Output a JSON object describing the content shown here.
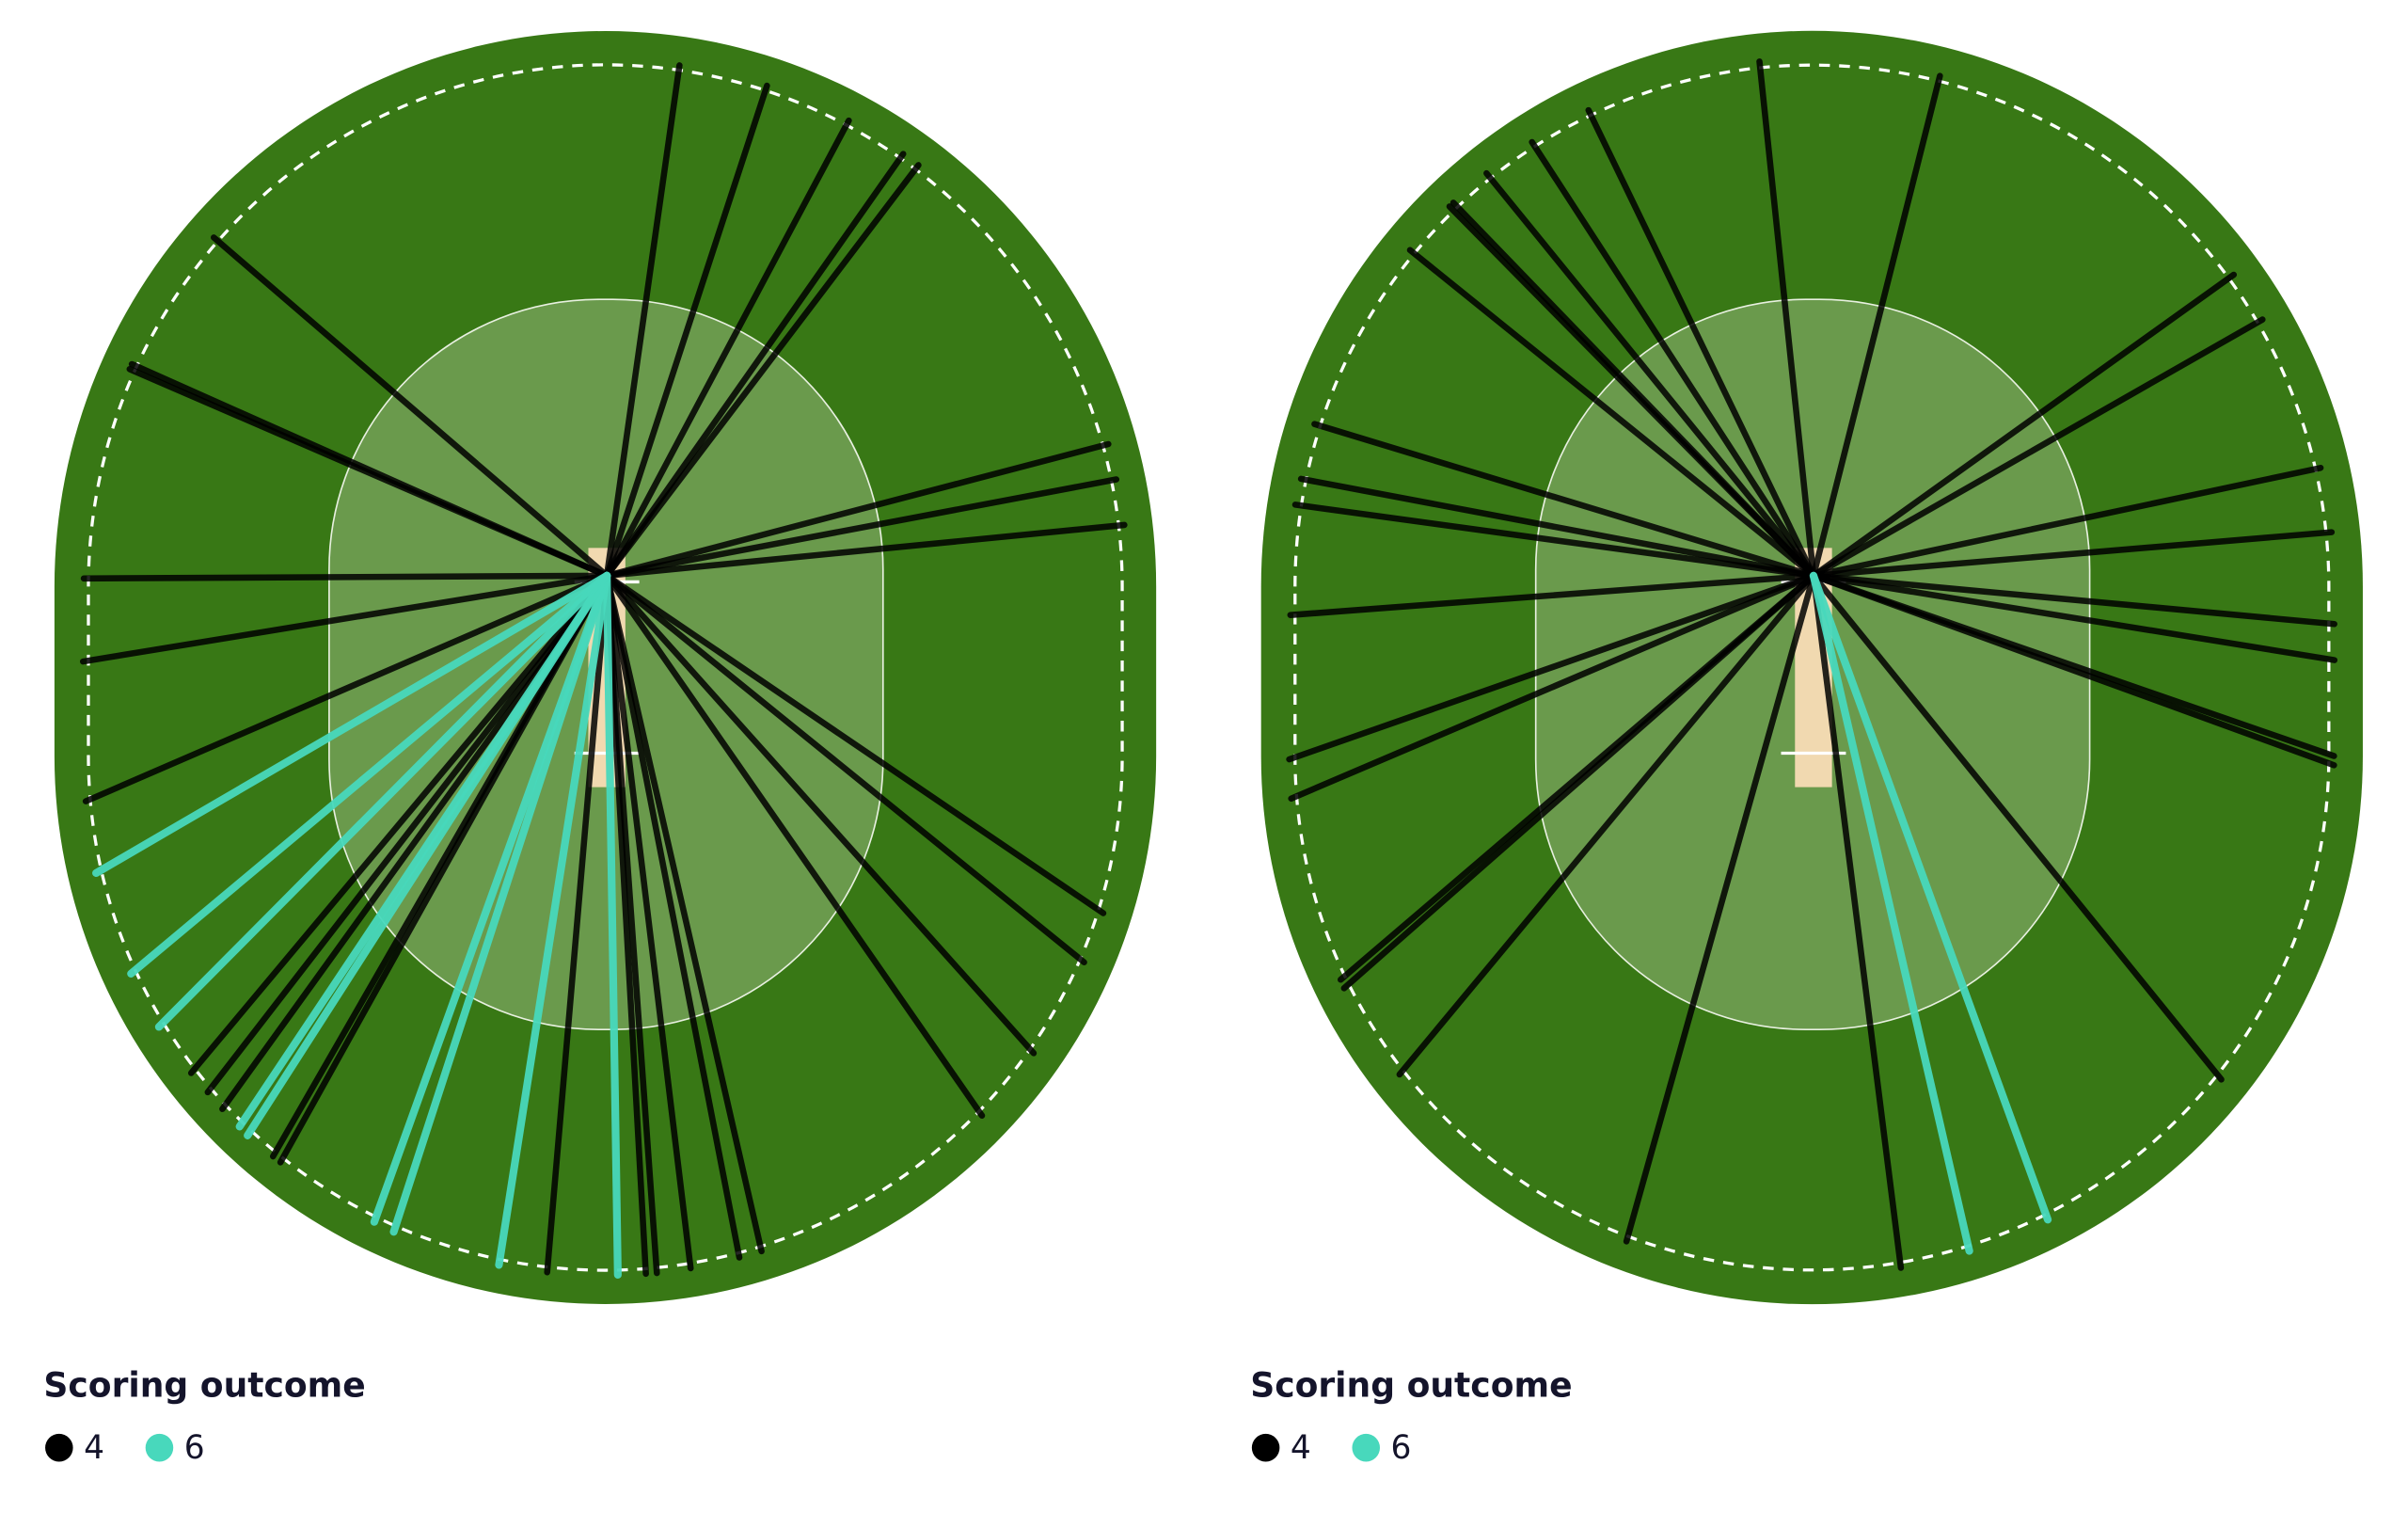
{
  "chart_data": [
    {
      "type": "wagon-wheel",
      "legend_title": "Scoring outcome",
      "series": [
        {
          "name": "4",
          "color": "#000000",
          "values": [
            8.1,
            18.1,
            28.0,
            35.1,
            37.2,
            75.3,
            79.3,
            84.4,
            124.2,
            129.0,
            138.2,
            145.2,
            167.1,
            169.0,
            173.1,
            175.9,
            176.8,
            184.9,
            209.1,
            209.9,
            215.8,
            217.7,
            219.9,
            246.6,
            260.7,
            269.7,
            293.4,
            294.0,
            310.7
          ]
        },
        {
          "name": "6",
          "color": "#48d8bc",
          "values": [
            179.1,
            188.9,
            198.0,
            199.8,
            212.7,
            213.7,
            224.8,
            230.1,
            239.8
          ]
        }
      ]
    },
    {
      "type": "wagon-wheel",
      "legend_title": "Scoring outcome",
      "series": [
        {
          "name": "4",
          "color": "#000000",
          "values": [
            354.0,
            14.2,
            54.4,
            60.3,
            78.0,
            85.2,
            95.3,
            99.2,
            109.1,
            110.0,
            141.0,
            172.8,
            195.7,
            219.7,
            228.7,
            229.5,
            246.9,
            250.7,
            265.7,
            277.8,
            280.7,
            286.9,
            308.9,
            315.4,
            316.0,
            320.9,
            327.0,
            334.2
          ]
        },
        {
          "name": "6",
          "color": "#48d8bc",
          "values": [
            167.0,
            160.0
          ]
        }
      ]
    }
  ]
}
